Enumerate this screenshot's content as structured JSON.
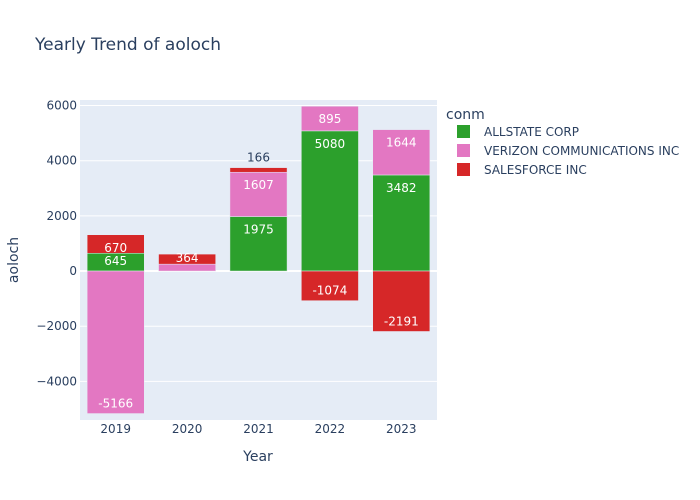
{
  "chart_data": {
    "type": "bar",
    "barmode": "relative",
    "title": "Yearly Trend of aoloch",
    "xlabel": "Year",
    "ylabel": "aoloch",
    "categories": [
      "2019",
      "2020",
      "2021",
      "2022",
      "2023"
    ],
    "ylim": [
      -5400,
      6200
    ],
    "yticks": [
      -4000,
      -2000,
      0,
      2000,
      4000,
      6000
    ],
    "ytick_labels": [
      "−4000",
      "−2000",
      "0",
      "2000",
      "4000",
      "6000"
    ],
    "legend_title": "conm",
    "legend_position": "right",
    "grid": true,
    "plot_bg": "#e5ecf6",
    "series": [
      {
        "name": "ALLSTATE CORP",
        "color": "#2ca02c",
        "values": [
          645,
          null,
          1975,
          5080,
          3482
        ],
        "labels": [
          "645",
          "",
          "1975",
          "5080",
          "3482"
        ]
      },
      {
        "name": "VERIZON COMMUNICATIONS INC",
        "color": "#e377c2",
        "values": [
          -5166,
          250,
          1607,
          895,
          1644
        ],
        "labels": [
          "-5166",
          "",
          "1607",
          "895",
          "1644"
        ]
      },
      {
        "name": "SALESFORCE INC",
        "color": "#d62728",
        "values": [
          670,
          364,
          166,
          -1074,
          -2191
        ],
        "labels": [
          "670",
          "364",
          "166",
          "-1074",
          "-2191"
        ]
      }
    ]
  }
}
